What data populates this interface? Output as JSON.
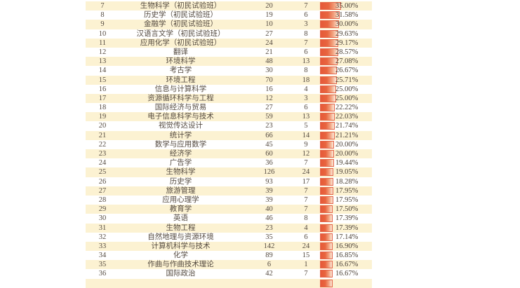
{
  "page": {
    "background": "#ffffff"
  },
  "table": {
    "description": "ranked table of majors with two counts, percentage label and gradient data bar",
    "row_colors": {
      "odd_rank": "#fcf2d2",
      "even_rank": "#ffffff"
    },
    "text_color": "#554b41",
    "bar": {
      "color_start": "#e65939",
      "color_end": "#fcead9",
      "border_color": "#e4654a"
    },
    "partial_next_row_visible": true,
    "rows": [
      {
        "rank": "7",
        "name": "生物科学（初民试验班）",
        "value1": "20",
        "value2": "7",
        "percent": "35.00%",
        "percent_value": 35.0
      },
      {
        "rank": "8",
        "name": "历史学（初民试验班）",
        "value1": "19",
        "value2": "6",
        "percent": "31.58%",
        "percent_value": 31.58
      },
      {
        "rank": "9",
        "name": "金融学（初民试验班）",
        "value1": "10",
        "value2": "3",
        "percent": "30.00%",
        "percent_value": 30.0
      },
      {
        "rank": "10",
        "name": "汉语言文学（初民试验班）",
        "value1": "27",
        "value2": "8",
        "percent": "29.63%",
        "percent_value": 29.63
      },
      {
        "rank": "11",
        "name": "应用化学（初民试验班）",
        "value1": "24",
        "value2": "7",
        "percent": "29.17%",
        "percent_value": 29.17
      },
      {
        "rank": "12",
        "name": "翻译",
        "value1": "21",
        "value2": "6",
        "percent": "28.57%",
        "percent_value": 28.57
      },
      {
        "rank": "13",
        "name": "环境科学",
        "value1": "48",
        "value2": "13",
        "percent": "27.08%",
        "percent_value": 27.08
      },
      {
        "rank": "14",
        "name": "考古学",
        "value1": "30",
        "value2": "8",
        "percent": "26.67%",
        "percent_value": 26.67
      },
      {
        "rank": "15",
        "name": "环境工程",
        "value1": "70",
        "value2": "18",
        "percent": "25.71%",
        "percent_value": 25.71
      },
      {
        "rank": "16",
        "name": "信息与计算科学",
        "value1": "16",
        "value2": "4",
        "percent": "25.00%",
        "percent_value": 25.0
      },
      {
        "rank": "17",
        "name": "资源循环科学与工程",
        "value1": "12",
        "value2": "3",
        "percent": "25.00%",
        "percent_value": 25.0
      },
      {
        "rank": "18",
        "name": "国际经济与贸易",
        "value1": "27",
        "value2": "6",
        "percent": "22.22%",
        "percent_value": 22.22
      },
      {
        "rank": "19",
        "name": "电子信息科学与技术",
        "value1": "59",
        "value2": "13",
        "percent": "22.03%",
        "percent_value": 22.03
      },
      {
        "rank": "20",
        "name": "视觉传达设计",
        "value1": "23",
        "value2": "5",
        "percent": "21.74%",
        "percent_value": 21.74
      },
      {
        "rank": "21",
        "name": "统计学",
        "value1": "66",
        "value2": "14",
        "percent": "21.21%",
        "percent_value": 21.21
      },
      {
        "rank": "22",
        "name": "数学与应用数学",
        "value1": "45",
        "value2": "9",
        "percent": "20.00%",
        "percent_value": 20.0
      },
      {
        "rank": "23",
        "name": "经济学",
        "value1": "60",
        "value2": "12",
        "percent": "20.00%",
        "percent_value": 20.0
      },
      {
        "rank": "24",
        "name": "广告学",
        "value1": "36",
        "value2": "7",
        "percent": "19.44%",
        "percent_value": 19.44
      },
      {
        "rank": "25",
        "name": "生物科学",
        "value1": "126",
        "value2": "24",
        "percent": "19.05%",
        "percent_value": 19.05
      },
      {
        "rank": "26",
        "name": "历史学",
        "value1": "93",
        "value2": "17",
        "percent": "18.28%",
        "percent_value": 18.28
      },
      {
        "rank": "27",
        "name": "旅游管理",
        "value1": "39",
        "value2": "7",
        "percent": "17.95%",
        "percent_value": 17.95
      },
      {
        "rank": "28",
        "name": "应用心理学",
        "value1": "39",
        "value2": "7",
        "percent": "17.95%",
        "percent_value": 17.95
      },
      {
        "rank": "29",
        "name": "教育学",
        "value1": "40",
        "value2": "7",
        "percent": "17.50%",
        "percent_value": 17.5
      },
      {
        "rank": "30",
        "name": "英语",
        "value1": "46",
        "value2": "8",
        "percent": "17.39%",
        "percent_value": 17.39
      },
      {
        "rank": "31",
        "name": "生物工程",
        "value1": "23",
        "value2": "4",
        "percent": "17.39%",
        "percent_value": 17.39
      },
      {
        "rank": "32",
        "name": "自然地理与资源环境",
        "value1": "35",
        "value2": "6",
        "percent": "17.14%",
        "percent_value": 17.14
      },
      {
        "rank": "33",
        "name": "计算机科学与技术",
        "value1": "142",
        "value2": "24",
        "percent": "16.90%",
        "percent_value": 16.9
      },
      {
        "rank": "34",
        "name": "化学",
        "value1": "89",
        "value2": "15",
        "percent": "16.85%",
        "percent_value": 16.85
      },
      {
        "rank": "35",
        "name": "作曲与作曲技术理论",
        "value1": "6",
        "value2": "1",
        "percent": "16.67%",
        "percent_value": 16.67
      },
      {
        "rank": "36",
        "name": "国际政治",
        "value1": "42",
        "value2": "7",
        "percent": "16.67%",
        "percent_value": 16.67
      }
    ]
  }
}
